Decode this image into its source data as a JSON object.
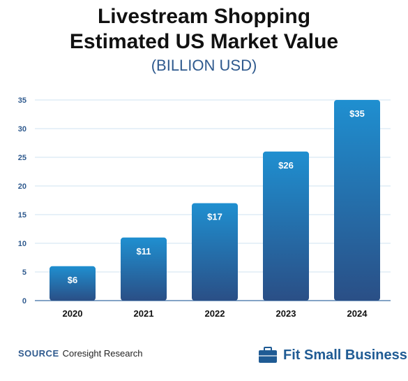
{
  "chart_data": {
    "type": "bar",
    "title": "Livestream Shopping",
    "title_line2": "Estimated US Market Value",
    "subtitle": "(BILLION USD)",
    "categories": [
      "2020",
      "2021",
      "2022",
      "2023",
      "2024"
    ],
    "values": [
      6,
      11,
      17,
      26,
      35
    ],
    "data_labels": [
      "$6",
      "$11",
      "$17",
      "$26",
      "$35"
    ],
    "yticks": [
      "0",
      "5",
      "10",
      "15",
      "20",
      "25",
      "30",
      "35"
    ],
    "ylim": [
      0,
      35
    ],
    "grid": true,
    "colors": {
      "bar_top": "#1f8fd0",
      "bar_bottom": "#2a4f86",
      "tick": "#2f5a8e",
      "grid": "#cfe3f2"
    }
  },
  "source": {
    "label": "SOURCE",
    "text": "Coresight Research"
  },
  "brand": {
    "name": "Fit Small Business",
    "icon": "briefcase-icon"
  }
}
